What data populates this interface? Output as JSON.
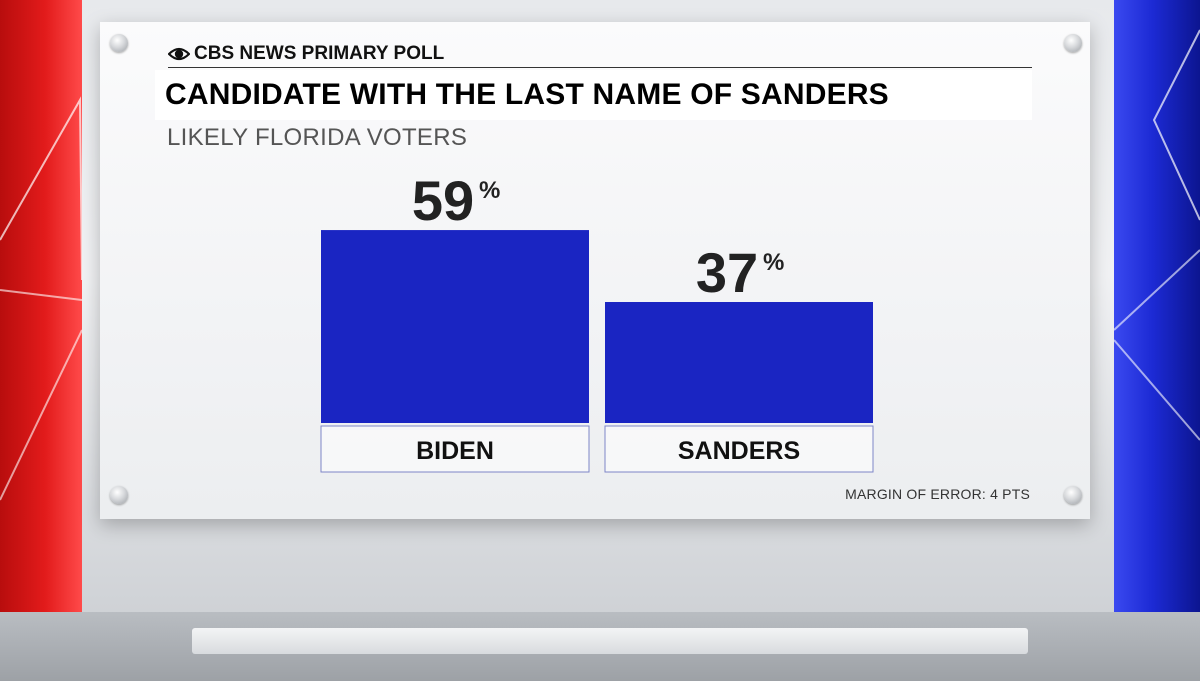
{
  "header": {
    "brand": "CBS NEWS PRIMARY POLL",
    "title": "CANDIDATE WITH THE LAST NAME OF SANDERS",
    "subtitle": "LIKELY FLORIDA VOTERS"
  },
  "footer": {
    "margin_of_error": "MARGIN OF ERROR: 4 PTS"
  },
  "colors": {
    "bar": "#1a25c2",
    "left_panel": "#e21b1b",
    "right_panel": "#1c2ad4"
  },
  "icons": [
    "cbs-eye-icon",
    "screw-icon"
  ],
  "chart_data": {
    "type": "bar",
    "title": "CANDIDATE WITH THE LAST NAME OF SANDERS",
    "subtitle": "LIKELY FLORIDA VOTERS",
    "categories": [
      "BIDEN",
      "SANDERS"
    ],
    "values": [
      59,
      37
    ],
    "value_labels": [
      "59",
      "37"
    ],
    "unit": "%",
    "ylim": [
      0,
      100
    ],
    "grid": false
  }
}
